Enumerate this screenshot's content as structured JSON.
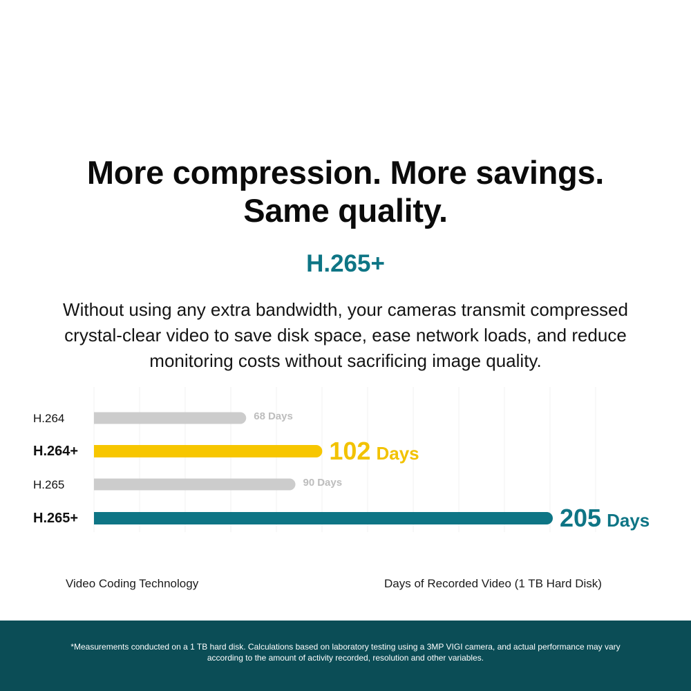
{
  "headline": {
    "line1": "More compression. More savings.",
    "line2": "Same quality."
  },
  "subtitle": "H.265+",
  "description": {
    "line1": "Without using any extra bandwidth, your cameras transmit compressed",
    "line2": "crystal-clear video to save disk space, ease network loads, and reduce",
    "line3": "monitoring costs without sacrificing image quality."
  },
  "chart_data": {
    "type": "bar",
    "orientation": "horizontal",
    "categories": [
      "H.264",
      "H.264+",
      "H.265",
      "H.265+"
    ],
    "values": [
      68,
      102,
      90,
      205
    ],
    "value_suffix": "Days",
    "highlighted": [
      false,
      true,
      false,
      true
    ],
    "bar_colors": [
      "#cccccc",
      "#f7c600",
      "#cccccc",
      "#0e7585"
    ],
    "label_colors": [
      "#bdbdbd",
      "#f2c200",
      "#bdbdbd",
      "#0e7585"
    ],
    "xlabel": "Video Coding Technology",
    "ylabel": "Days of Recorded Video (1 TB Hard Disk)",
    "xlim": [
      0,
      220
    ],
    "grid": true
  },
  "footer": {
    "line1": "*Measurements conducted on a 1 TB hard disk. Calculations based on laboratory testing using a 3MP VIGI camera, and actual performance may vary",
    "line2": "according to the amount of activity recorded, resolution and other variables."
  },
  "colors": {
    "accent": "#0e7585",
    "highlight": "#f7c600",
    "neutral_bar": "#cccccc",
    "footer_bg": "#0b4d56"
  }
}
